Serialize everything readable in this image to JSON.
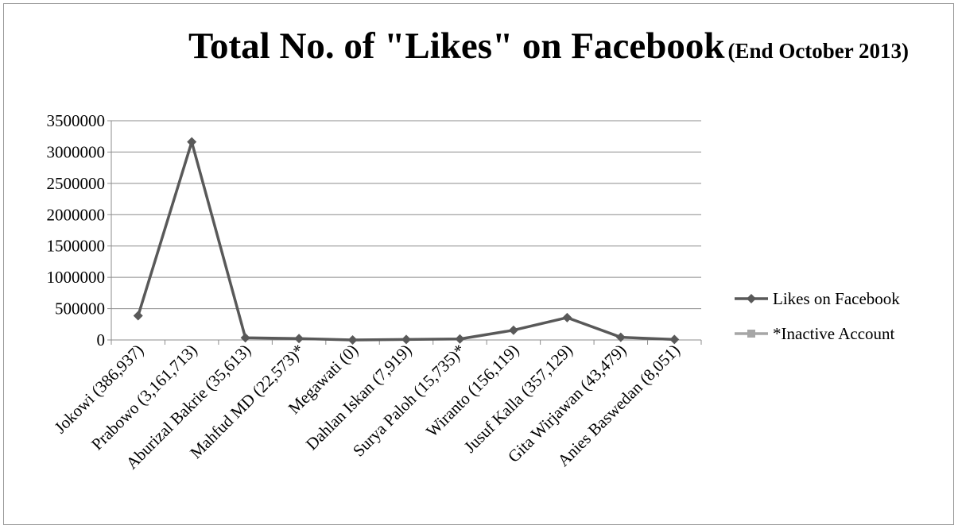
{
  "chart_data": {
    "type": "line",
    "title": "Total No. of \"Likes\" on Facebook",
    "subtitle": "(End October 2013)",
    "categories": [
      "Jokowi (386,937)",
      "Prabowo (3,161,713)",
      "Aburizal Bakrie (35,613)",
      "Mahfud MD (22,573)*",
      "Megawati (0)",
      "Dahlan Iskan (7,919)",
      "Surya Paloh (15,735)*",
      "Wiranto (156,119)",
      "Jusuf Kalla (357,129)",
      "Gita Wirjawan (43,479)",
      "Anies Baswedan (8,051)"
    ],
    "series": [
      {
        "name": "Likes on Facebook",
        "color": "#595959",
        "marker": "diamond",
        "values": [
          386937,
          3161713,
          35613,
          22573,
          0,
          7919,
          15735,
          156119,
          357129,
          43479,
          8051
        ]
      },
      {
        "name": "*Inactive Account",
        "color": "#a6a6a6",
        "marker": "square",
        "values": [
          null,
          null,
          null,
          null,
          null,
          null,
          null,
          null,
          null,
          null,
          null
        ]
      }
    ],
    "ylim": [
      0,
      3500000
    ],
    "yticks": [
      0,
      500000,
      1000000,
      1500000,
      2000000,
      2500000,
      3000000,
      3500000
    ],
    "grid": true,
    "legend": "right"
  }
}
